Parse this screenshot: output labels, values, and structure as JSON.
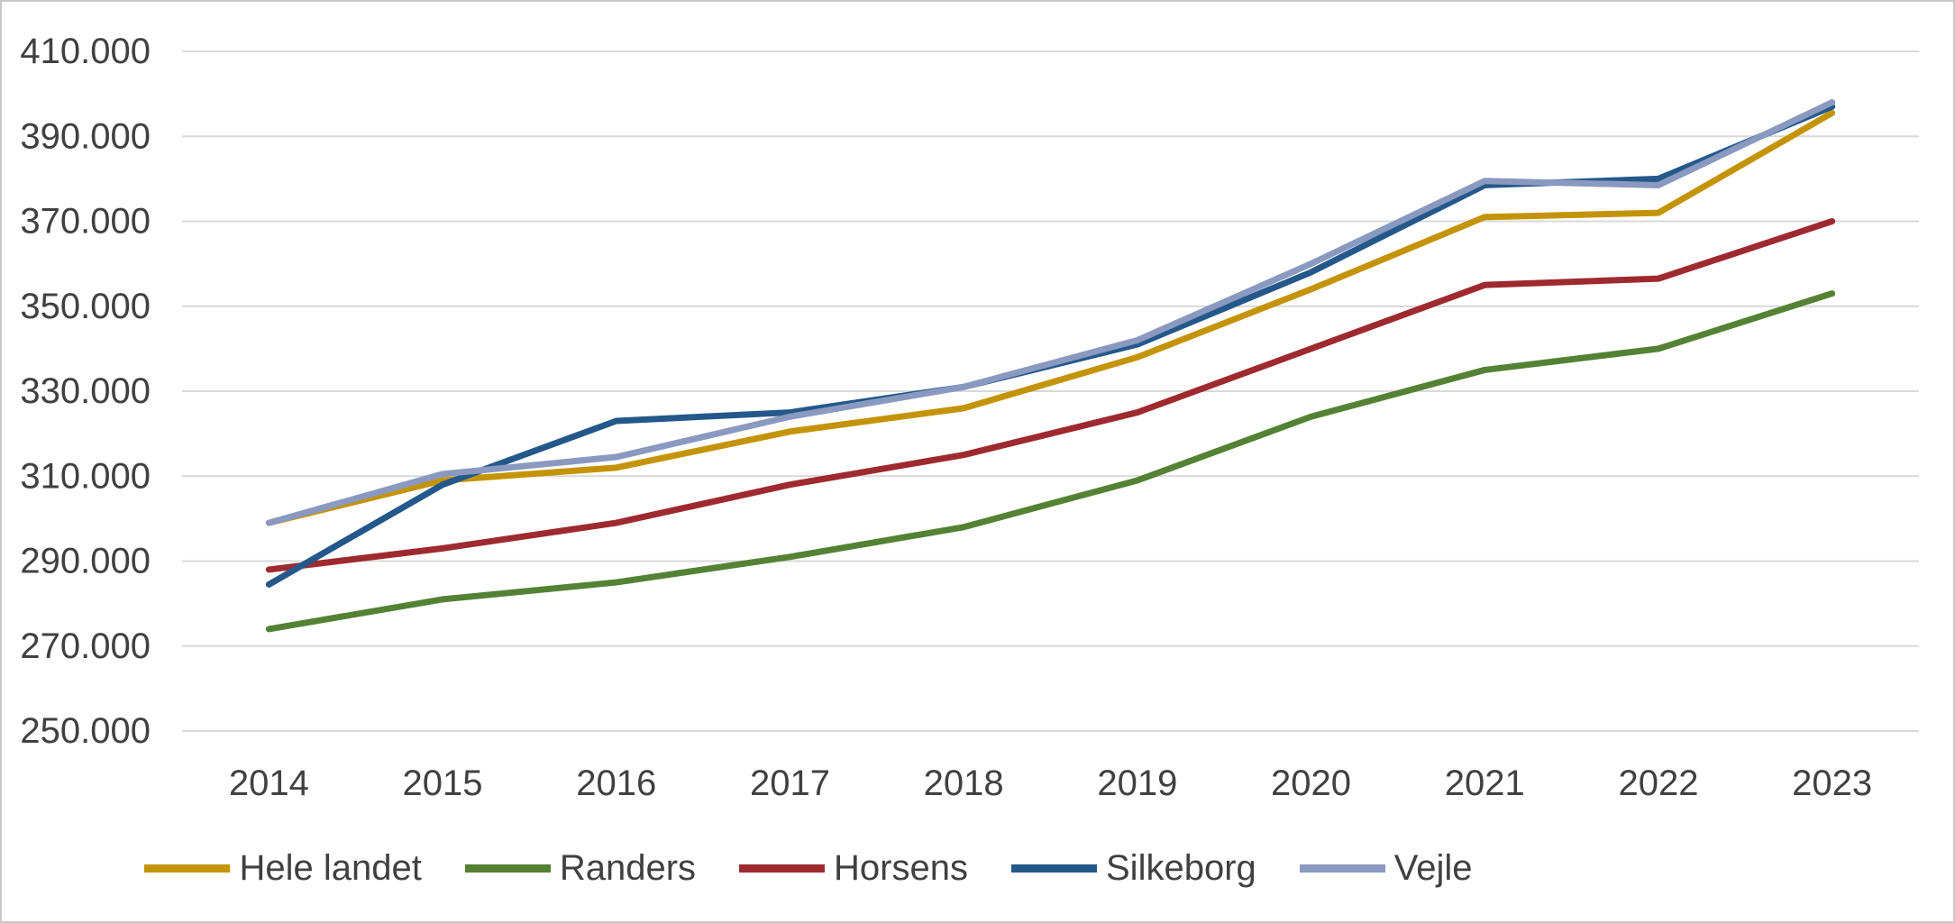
{
  "chart_data": {
    "type": "line",
    "title": "",
    "xlabel": "",
    "ylabel": "",
    "categories": [
      "2014",
      "2015",
      "2016",
      "2017",
      "2018",
      "2019",
      "2020",
      "2021",
      "2022",
      "2023"
    ],
    "series": [
      {
        "name": "Hele landet",
        "color": "#C49408",
        "values": [
          299000,
          309000,
          312000,
          320500,
          326000,
          338000,
          354000,
          371000,
          372000,
          395500
        ]
      },
      {
        "name": "Randers",
        "color": "#548235",
        "values": [
          274000,
          281000,
          285000,
          291000,
          298000,
          309000,
          324000,
          335000,
          340000,
          353000
        ]
      },
      {
        "name": "Horsens",
        "color": "#9E2A2F",
        "values": [
          288000,
          293000,
          299000,
          308000,
          315000,
          325000,
          340000,
          355000,
          356500,
          370000
        ]
      },
      {
        "name": "Silkeborg",
        "color": "#24588A",
        "values": [
          284500,
          308000,
          323000,
          325000,
          331000,
          341000,
          358000,
          378500,
          380000,
          397000
        ]
      },
      {
        "name": "Vejle",
        "color": "#8A99C0",
        "values": [
          299000,
          310500,
          314500,
          324000,
          331000,
          342000,
          360000,
          379500,
          378500,
          398000
        ]
      }
    ],
    "ylim": [
      250000,
      410000
    ],
    "ytick_step": 20000,
    "ytick_labels": [
      "250.000",
      "270.000",
      "290.000",
      "310.000",
      "330.000",
      "350.000",
      "370.000",
      "390.000",
      "410.000"
    ],
    "grid": true,
    "legend_position": "bottom"
  },
  "colors": {
    "gridline": "#D9D9D9",
    "axis_text": "#404040",
    "background": "#FFFFFF",
    "border": "#C9C9C9"
  }
}
